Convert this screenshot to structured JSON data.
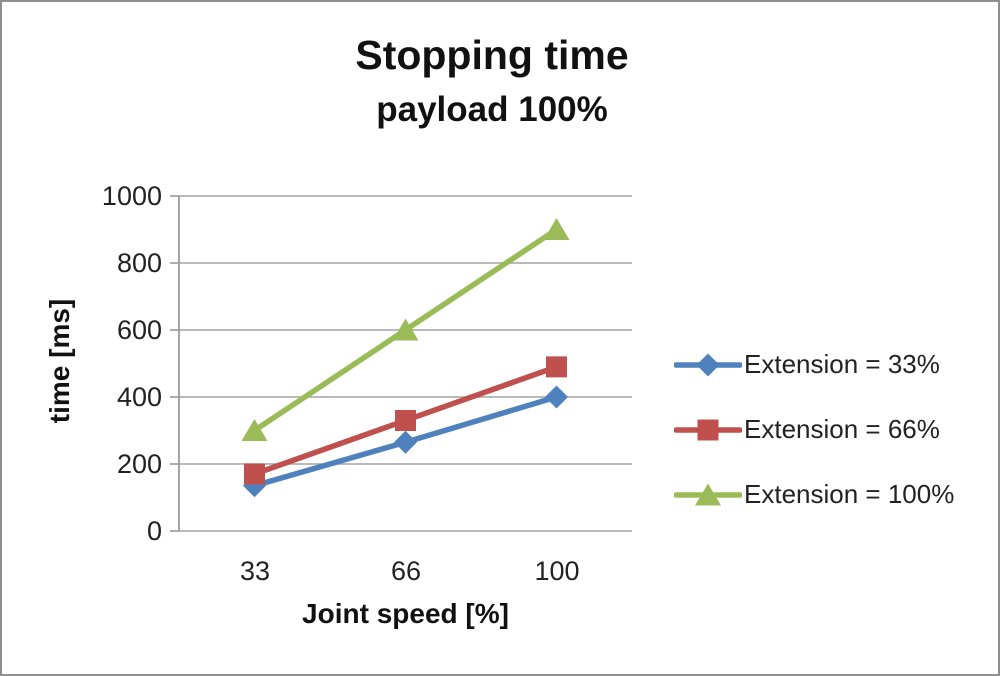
{
  "title": "Stopping time",
  "subtitle": "payload 100%",
  "chart_data": {
    "type": "line",
    "categories": [
      33,
      66,
      100
    ],
    "x_tick_labels": [
      "33",
      "66",
      "100"
    ],
    "series": [
      {
        "name": "Extension = 33%",
        "marker": "diamond",
        "color": "#4F81BD",
        "values": [
          135,
          265,
          400
        ]
      },
      {
        "name": "Extension = 66%",
        "marker": "square",
        "color": "#C0504D",
        "values": [
          170,
          330,
          490
        ]
      },
      {
        "name": "Extension = 100%",
        "marker": "triangle",
        "color": "#9BBB59",
        "values": [
          300,
          600,
          900
        ]
      }
    ],
    "xlabel": "Joint speed [%]",
    "ylabel": "time [ms]",
    "ylim": [
      0,
      1000
    ],
    "y_ticks": [
      0,
      200,
      400,
      600,
      800,
      1000
    ],
    "grid": true,
    "legend_position": "right",
    "gridline_color": "#A3A3A3",
    "axis_color": "#9a9a9a",
    "text_color": "#1f1f1f"
  }
}
